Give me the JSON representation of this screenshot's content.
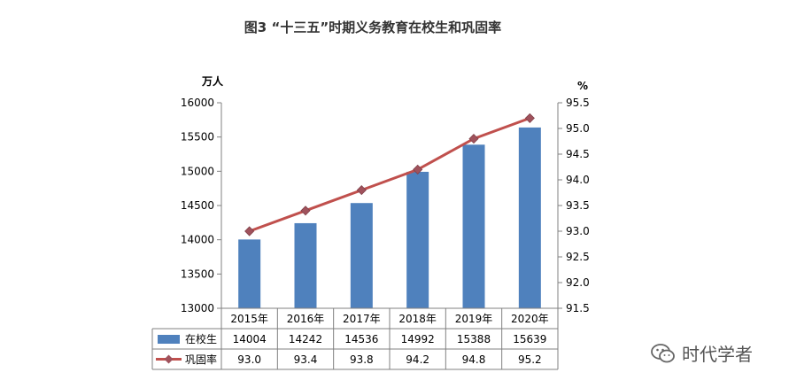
{
  "chart_data": {
    "type": "bar+line",
    "title": "图3 “十三五”时期义务教育在校生和巩固率",
    "categories": [
      "2015年",
      "2016年",
      "2017年",
      "2018年",
      "2019年",
      "2020年"
    ],
    "series": [
      {
        "name": "在校生",
        "type": "bar",
        "axis": "left",
        "color": "#4f81bd",
        "values": [
          14004,
          14242,
          14536,
          14992,
          15388,
          15639
        ],
        "labels": [
          "14004",
          "14242",
          "14536",
          "14992",
          "15388",
          "15639"
        ]
      },
      {
        "name": "巩固率",
        "type": "line",
        "axis": "right",
        "color": "#c0504d",
        "values": [
          93.0,
          93.4,
          93.8,
          94.2,
          94.8,
          95.2
        ],
        "labels": [
          "93.0",
          "93.4",
          "93.8",
          "94.2",
          "94.8",
          "95.2"
        ]
      }
    ],
    "yLeft": {
      "unit": "万人",
      "range": [
        13000,
        16000
      ],
      "ticks": [
        13000,
        13500,
        14000,
        14500,
        15000,
        15500,
        16000
      ],
      "tickLabels": [
        "13000",
        "13500",
        "14000",
        "14500",
        "15000",
        "15500",
        "16000"
      ]
    },
    "yRight": {
      "unit": "%",
      "range": [
        91.5,
        95.5
      ],
      "ticks": [
        91.5,
        92.0,
        92.5,
        93.0,
        93.5,
        94.0,
        94.5,
        95.0,
        95.5
      ],
      "tickLabels": [
        "91.5",
        "92.0",
        "92.5",
        "93.0",
        "93.5",
        "94.0",
        "94.5",
        "95.0",
        "95.5"
      ]
    },
    "grid": false,
    "legend": "data-table"
  },
  "watermark": {
    "text": "时代学者",
    "icon": "wechat-icon",
    "color": "#666666"
  }
}
